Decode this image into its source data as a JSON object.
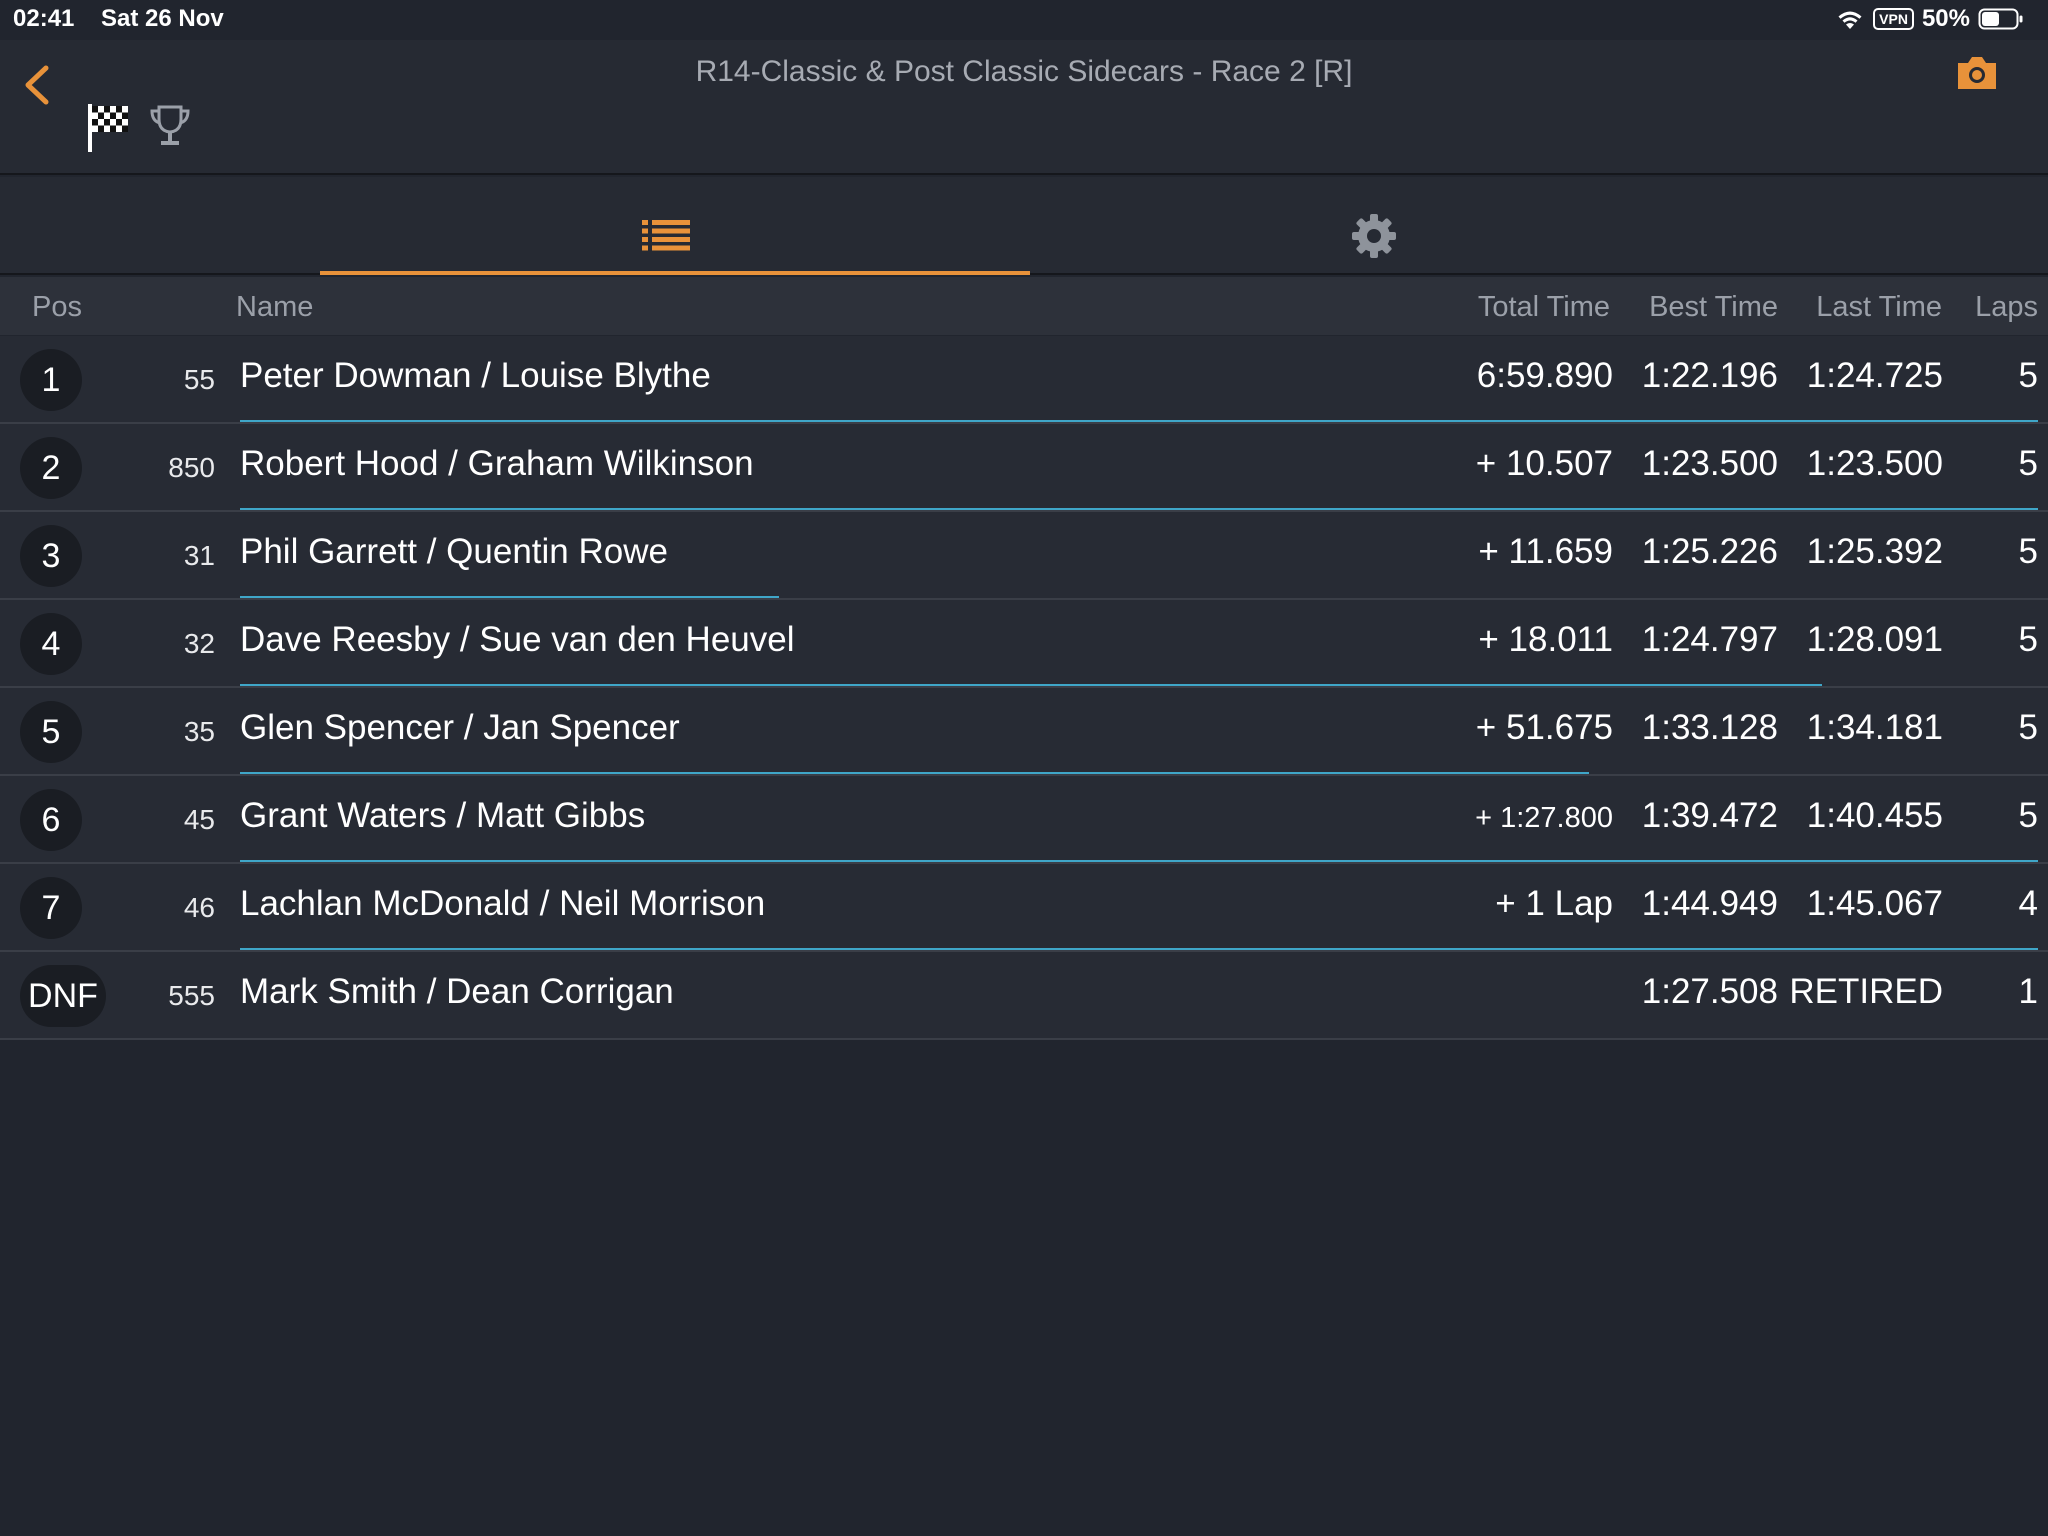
{
  "status_bar": {
    "time": "02:41",
    "date": "Sat 26 Nov",
    "vpn": "VPN",
    "battery": "50%"
  },
  "header": {
    "title": "R14-Classic & Post Classic Sidecars - Race 2 [R]"
  },
  "icons": {
    "back": "chevron-left-icon",
    "flag": "checkered-flag-icon",
    "trophy": "trophy-icon",
    "camera": "camera-icon",
    "list": "list-icon",
    "gear": "gear-icon"
  },
  "colors": {
    "accent": "#e8923a",
    "progress": "#3fa6c8",
    "background": "#21252e"
  },
  "table": {
    "headers": {
      "pos": "Pos",
      "name": "Name",
      "total": "Total Time",
      "best": "Best Time",
      "last": "Last Time",
      "laps": "Laps"
    },
    "rows": [
      {
        "pos": "1",
        "num": "55",
        "name": "Peter Dowman / Louise Blythe",
        "total": "6:59.890",
        "best": "1:22.196",
        "last": "1:24.725",
        "laps": "5",
        "progress": 1.0
      },
      {
        "pos": "2",
        "num": "850",
        "name": "Robert Hood / Graham Wilkinson",
        "total": "+ 10.507",
        "best": "1:23.500",
        "last": "1:23.500",
        "laps": "5",
        "progress": 1.0
      },
      {
        "pos": "3",
        "num": "31",
        "name": "Phil Garrett / Quentin Rowe",
        "total": "+ 11.659",
        "best": "1:25.226",
        "last": "1:25.392",
        "laps": "5",
        "progress": 0.3
      },
      {
        "pos": "4",
        "num": "32",
        "name": "Dave Reesby / Sue van den Heuvel",
        "total": "+ 18.011",
        "best": "1:24.797",
        "last": "1:28.091",
        "laps": "5",
        "progress": 0.88
      },
      {
        "pos": "5",
        "num": "35",
        "name": "Glen Spencer / Jan Spencer",
        "total": "+ 51.675",
        "best": "1:33.128",
        "last": "1:34.181",
        "laps": "5",
        "progress": 0.75
      },
      {
        "pos": "6",
        "num": "45",
        "name": "Grant Waters / Matt Gibbs",
        "total": "+ 1:27.800",
        "best": "1:39.472",
        "last": "1:40.455",
        "laps": "5",
        "progress": 1.0,
        "total_small": true
      },
      {
        "pos": "7",
        "num": "46",
        "name": "Lachlan McDonald / Neil Morrison",
        "total": "+ 1 Lap",
        "best": "1:44.949",
        "last": "1:45.067",
        "laps": "4",
        "progress": 1.0
      },
      {
        "pos": "DNF",
        "num": "555",
        "name": "Mark Smith / Dean Corrigan",
        "total": "",
        "best": "1:27.508",
        "last": "RETIRED",
        "laps": "1",
        "progress": 0.0
      }
    ]
  }
}
